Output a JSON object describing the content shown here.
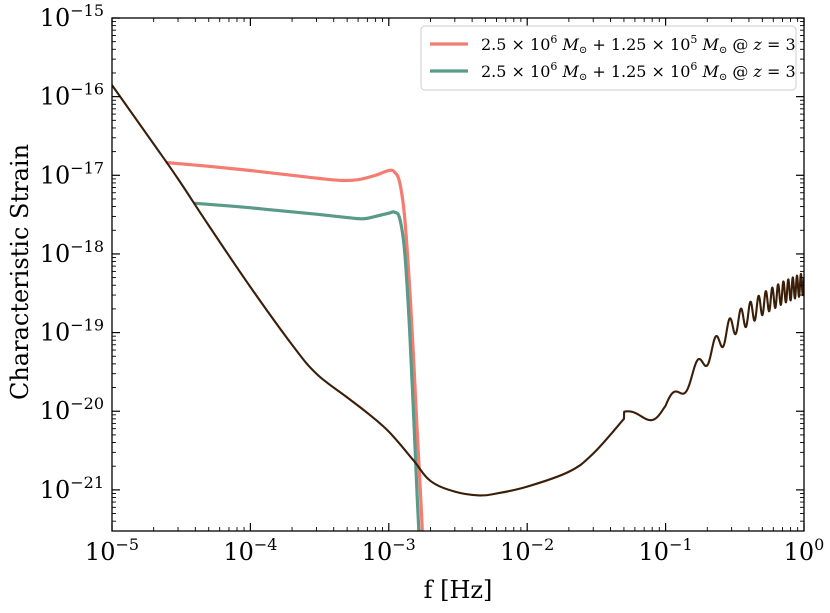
{
  "chart_data": {
    "type": "line",
    "xscale": "log",
    "yscale": "log",
    "xlim": [
      1e-05,
      1
    ],
    "ylim": [
      3e-22,
      1e-15
    ],
    "xlabel": "f [Hz]",
    "ylabel": "Characteristic Strain",
    "grid": false,
    "legend_position": "top-right",
    "x_ticks": [
      {
        "value": 1e-05,
        "base": "10",
        "exp": "−5"
      },
      {
        "value": 0.0001,
        "base": "10",
        "exp": "−4"
      },
      {
        "value": 0.001,
        "base": "10",
        "exp": "−3"
      },
      {
        "value": 0.01,
        "base": "10",
        "exp": "−2"
      },
      {
        "value": 0.1,
        "base": "10",
        "exp": "−1"
      },
      {
        "value": 1,
        "base": "10",
        "exp": "0"
      }
    ],
    "y_ticks": [
      {
        "value": 1e-21,
        "base": "10",
        "exp": "−21"
      },
      {
        "value": 1e-20,
        "base": "10",
        "exp": "−20"
      },
      {
        "value": 1e-19,
        "base": "10",
        "exp": "−19"
      },
      {
        "value": 1e-18,
        "base": "10",
        "exp": "−18"
      },
      {
        "value": 1e-17,
        "base": "10",
        "exp": "−17"
      },
      {
        "value": 1e-16,
        "base": "10",
        "exp": "−16"
      },
      {
        "value": 1e-15,
        "base": "10",
        "exp": "−15"
      }
    ],
    "series": [
      {
        "name": "2.5 × 10^6 M⊙ + 1.25 × 10^5 M⊙ @ z = 3",
        "legend_parts": {
          "m1": "2.5",
          "e1": "6",
          "m2": "1.25",
          "e2": "5",
          "zval": "3"
        },
        "color": "#f47c70",
        "x": [
          2.5e-05,
          5e-05,
          0.0001,
          0.0002,
          0.0003,
          0.00045,
          0.0006,
          0.0008,
          0.001,
          0.0011,
          0.0012,
          0.0013,
          0.0014,
          0.0015,
          0.0016,
          0.0017,
          0.0018
        ],
        "y": [
          1.45e-17,
          1.3e-17,
          1.15e-17,
          1e-17,
          9.2e-18,
          8.6e-18,
          8.8e-18,
          1e-17,
          1.15e-17,
          1.1e-17,
          8e-18,
          3e-18,
          5e-19,
          6e-20,
          6e-21,
          8e-22,
          1e-22
        ]
      },
      {
        "name": "2.5 × 10^6 M⊙ + 1.25 × 10^6 M⊙ @ z = 3",
        "legend_parts": {
          "m1": "2.5",
          "e1": "6",
          "m2": "1.25",
          "e2": "6",
          "zval": "3"
        },
        "color": "#5a9a88",
        "x": [
          4e-05,
          8e-05,
          0.00015,
          0.0003,
          0.0005,
          0.00065,
          0.0008,
          0.001,
          0.0011,
          0.0012,
          0.0013,
          0.0014,
          0.0015,
          0.0016,
          0.0017
        ],
        "y": [
          4.4e-18,
          4e-18,
          3.6e-18,
          3.2e-18,
          2.9e-18,
          2.8e-18,
          3e-18,
          3.3e-18,
          3.4e-18,
          2.8e-18,
          1.1e-18,
          1.5e-19,
          1.2e-20,
          9e-22,
          1e-22
        ]
      }
    ],
    "sensitivity_curve": {
      "color": "#3b1e08",
      "x": [
        1e-05,
        2e-05,
        3e-05,
        5e-05,
        0.0001,
        0.0002,
        0.0003,
        0.0005,
        0.0007,
        0.001,
        0.0015,
        0.002,
        0.003,
        0.0045,
        0.006,
        0.01,
        0.02,
        0.03,
        0.05,
        0.1,
        0.2,
        0.3,
        0.5,
        0.7,
        1
      ],
      "y": [
        1.4e-16,
        2.5e-17,
        9e-18,
        2.3e-18,
        3.8e-19,
        7e-20,
        3e-20,
        1.5e-20,
        9.5e-21,
        5.5e-21,
        2.4e-21,
        1.3e-21,
        9.5e-22,
        8.5e-22,
        9e-22,
        1.1e-21,
        1.7e-21,
        2.9e-21,
        8e-21,
        1.05e-20,
        5e-20,
        1.2e-19,
        2.3e-19,
        3.2e-19,
        4.2e-19
      ],
      "oscillations": [
        {
          "f": 0.058,
          "y": 1.15e-20
        },
        {
          "f": 0.12,
          "y": 2.3e-20
        },
        {
          "f": 0.18,
          "y": 5e-20
        },
        {
          "f": 0.23,
          "y": 7.5e-20
        },
        {
          "f": 0.29,
          "y": 1.1e-19
        },
        {
          "f": 0.35,
          "y": 1.4e-19
        },
        {
          "f": 0.41,
          "y": 1.7e-19
        },
        {
          "f": 0.47,
          "y": 2e-19
        },
        {
          "f": 0.53,
          "y": 2.3e-19
        },
        {
          "f": 0.59,
          "y": 2.6e-19
        },
        {
          "f": 0.65,
          "y": 2.85e-19
        },
        {
          "f": 0.71,
          "y": 3.1e-19
        },
        {
          "f": 0.77,
          "y": 3.4e-19
        },
        {
          "f": 0.83,
          "y": 3.7e-19
        },
        {
          "f": 0.89,
          "y": 4e-19
        },
        {
          "f": 0.95,
          "y": 4.3e-19
        }
      ]
    }
  }
}
